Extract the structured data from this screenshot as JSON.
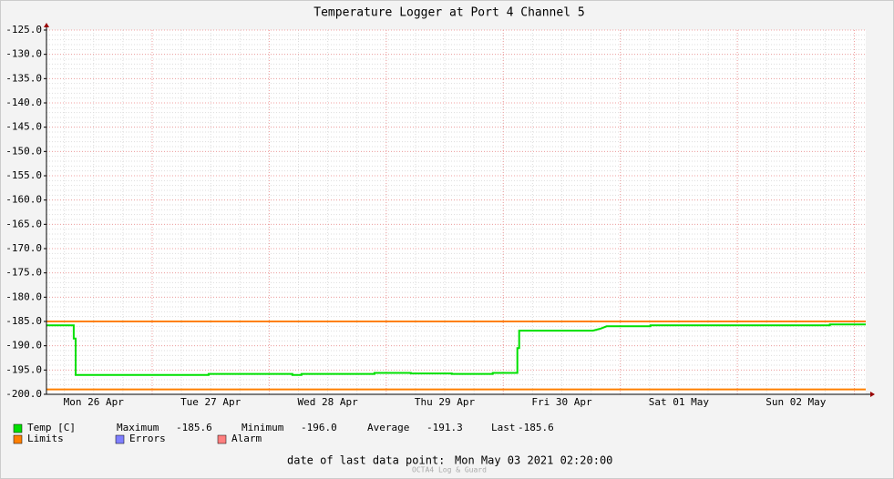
{
  "chart_data": {
    "type": "line",
    "title": "Temperature Logger at Port 4 Channel 5",
    "xlim": [
      0,
      7
    ],
    "xticks": [
      {
        "value": 0.403,
        "label": "Mon 26 Apr"
      },
      {
        "value": 1.403,
        "label": "Tue 27 Apr"
      },
      {
        "value": 2.403,
        "label": "Wed 28 Apr"
      },
      {
        "value": 3.403,
        "label": "Thu 29 Apr"
      },
      {
        "value": 4.403,
        "label": "Fri 30 Apr"
      },
      {
        "value": 5.403,
        "label": "Sat 01 May"
      },
      {
        "value": 6.403,
        "label": "Sun 02 May"
      }
    ],
    "ylim": [
      -200,
      -125
    ],
    "yticks": [
      {
        "value": -125,
        "label": "-125.0"
      },
      {
        "value": -130,
        "label": "-130.0"
      },
      {
        "value": -135,
        "label": "-135.0"
      },
      {
        "value": -140,
        "label": "-140.0"
      },
      {
        "value": -145,
        "label": "-145.0"
      },
      {
        "value": -150,
        "label": "-150.0"
      },
      {
        "value": -155,
        "label": "-155.0"
      },
      {
        "value": -160,
        "label": "-160.0"
      },
      {
        "value": -165,
        "label": "-165.0"
      },
      {
        "value": -170,
        "label": "-170.0"
      },
      {
        "value": -175,
        "label": "-175.0"
      },
      {
        "value": -180,
        "label": "-180.0"
      },
      {
        "value": -185,
        "label": "-185.0"
      },
      {
        "value": -190,
        "label": "-190.0"
      },
      {
        "value": -195,
        "label": "-195.0"
      },
      {
        "value": -200,
        "label": "-200.0"
      }
    ],
    "grid": true,
    "series": [
      {
        "name": "Temp [C]",
        "color": "#00e000",
        "x": [
          0,
          0.233,
          0.233,
          0.249,
          0.249,
          1.385,
          1.385,
          2.101,
          2.101,
          2.179,
          2.179,
          2.802,
          2.802,
          3.113,
          3.113,
          3.463,
          3.463,
          3.813,
          3.813,
          4.023,
          4.023,
          4.039,
          4.039,
          4.669,
          4.731,
          4.786,
          5.16,
          5.16,
          6.693,
          6.693,
          7
        ],
        "values": [
          -185.8,
          -185.8,
          -188.5,
          -188.5,
          -196.0,
          -196.0,
          -195.8,
          -195.8,
          -196.0,
          -196.0,
          -195.8,
          -195.8,
          -195.6,
          -195.6,
          -195.7,
          -195.7,
          -195.8,
          -195.8,
          -195.6,
          -195.6,
          -190.5,
          -190.5,
          -186.9,
          -186.9,
          -186.5,
          -186.0,
          -186.0,
          -185.8,
          -185.8,
          -185.6,
          -185.6
        ]
      }
    ],
    "stats": [
      {
        "name": "Maximum",
        "value": "-185.6"
      },
      {
        "name": "Minimum",
        "value": "-196.0"
      },
      {
        "name": "Average",
        "value": "-191.3"
      },
      {
        "name": "Last",
        "value": "-185.6"
      }
    ],
    "limits": {
      "name": "Limits",
      "color": "#ff8000",
      "values": [
        -185,
        -199
      ]
    },
    "legend_extra": [
      {
        "name": "Errors",
        "color": "#7f7fff"
      },
      {
        "name": "Alarm",
        "color": "#ff7f7f"
      }
    ],
    "footer_label": "date of last data point:",
    "footer_date": "Mon May 03 2021 02:20:00",
    "watermark": "OCTA4 Log & Guard"
  }
}
